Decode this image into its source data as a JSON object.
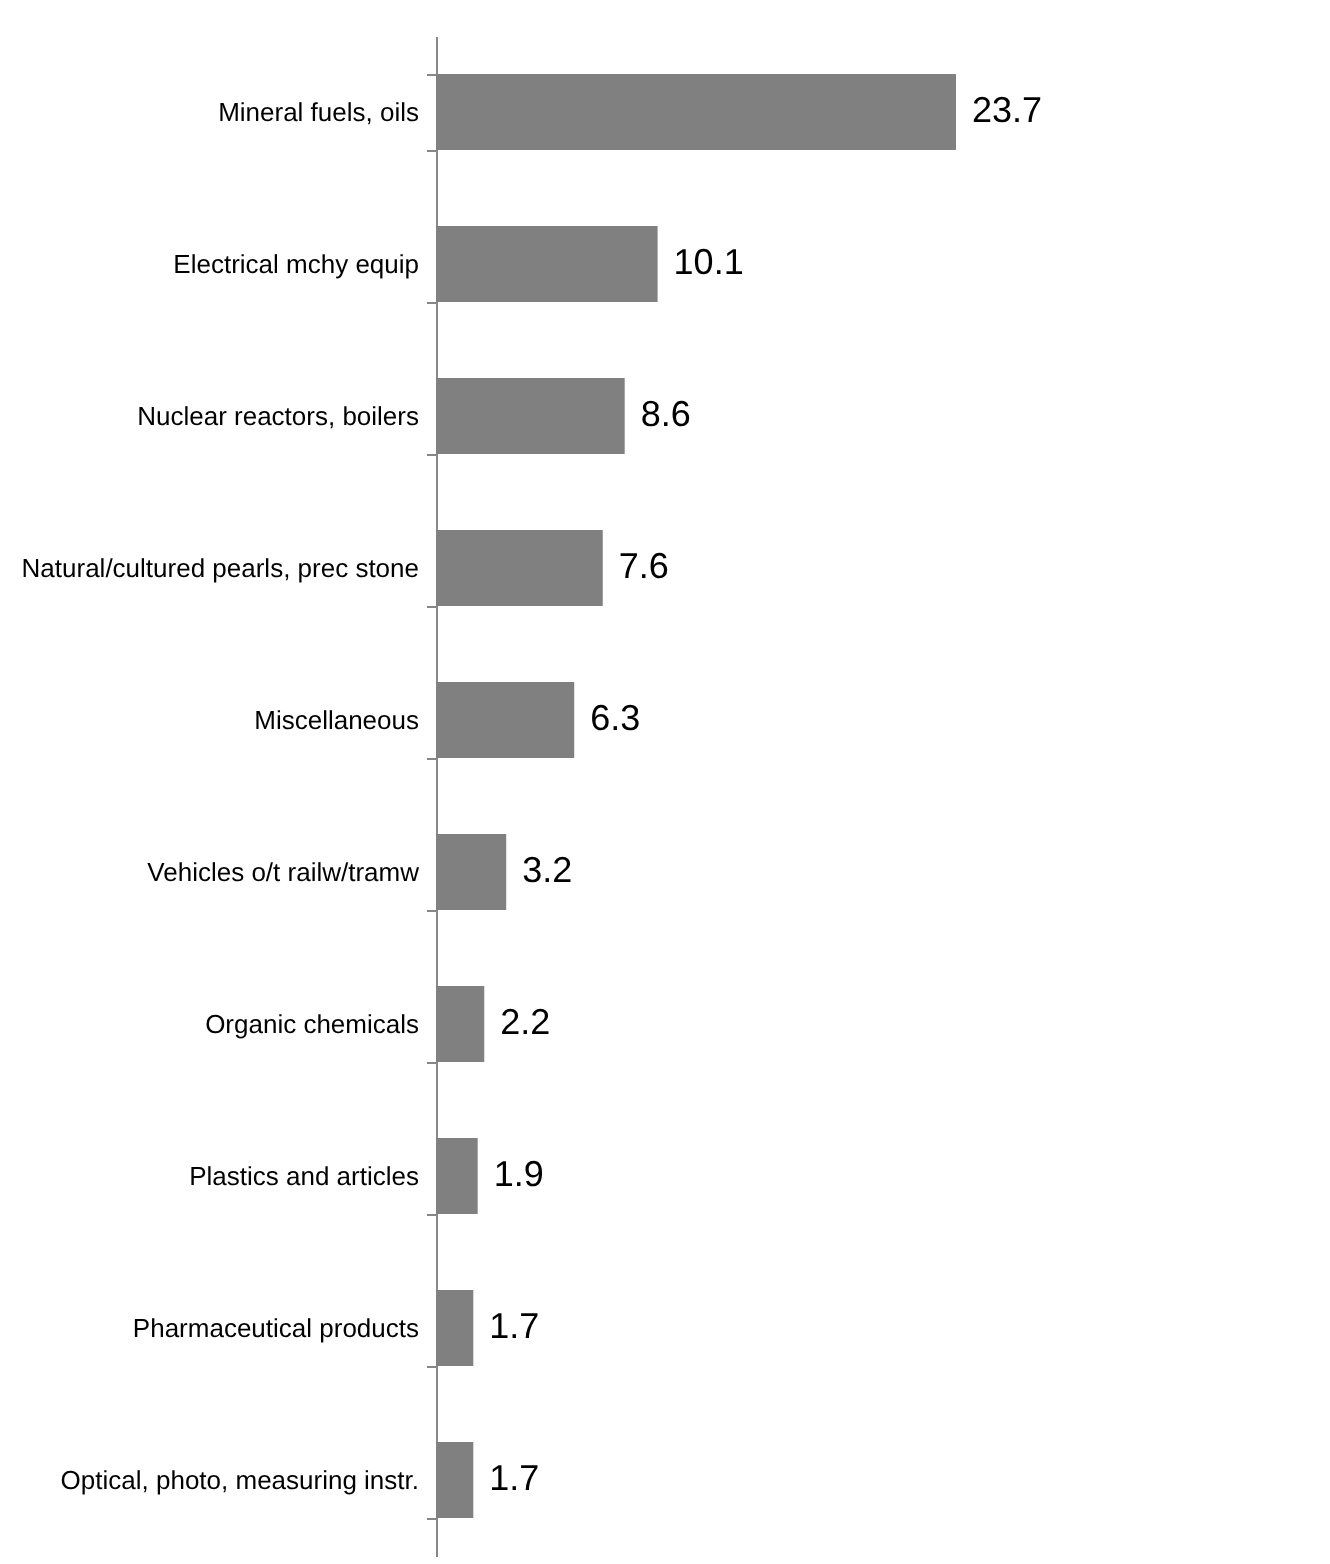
{
  "chart_data": {
    "type": "bar",
    "orientation": "horizontal",
    "categories": [
      "Mineral fuels, oils",
      "Electrical mchy equip",
      "Nuclear reactors, boilers",
      "Natural/cultured pearls, prec stone",
      "Miscellaneous",
      "Vehicles o/t railw/tramw",
      "Organic chemicals",
      "Plastics and articles",
      "Pharmaceutical products",
      "Optical, photo, measuring instr."
    ],
    "values": [
      23.7,
      10.1,
      8.6,
      7.6,
      6.3,
      3.2,
      2.2,
      1.9,
      1.7,
      1.7
    ],
    "color": "#808080",
    "data_labels": true
  }
}
